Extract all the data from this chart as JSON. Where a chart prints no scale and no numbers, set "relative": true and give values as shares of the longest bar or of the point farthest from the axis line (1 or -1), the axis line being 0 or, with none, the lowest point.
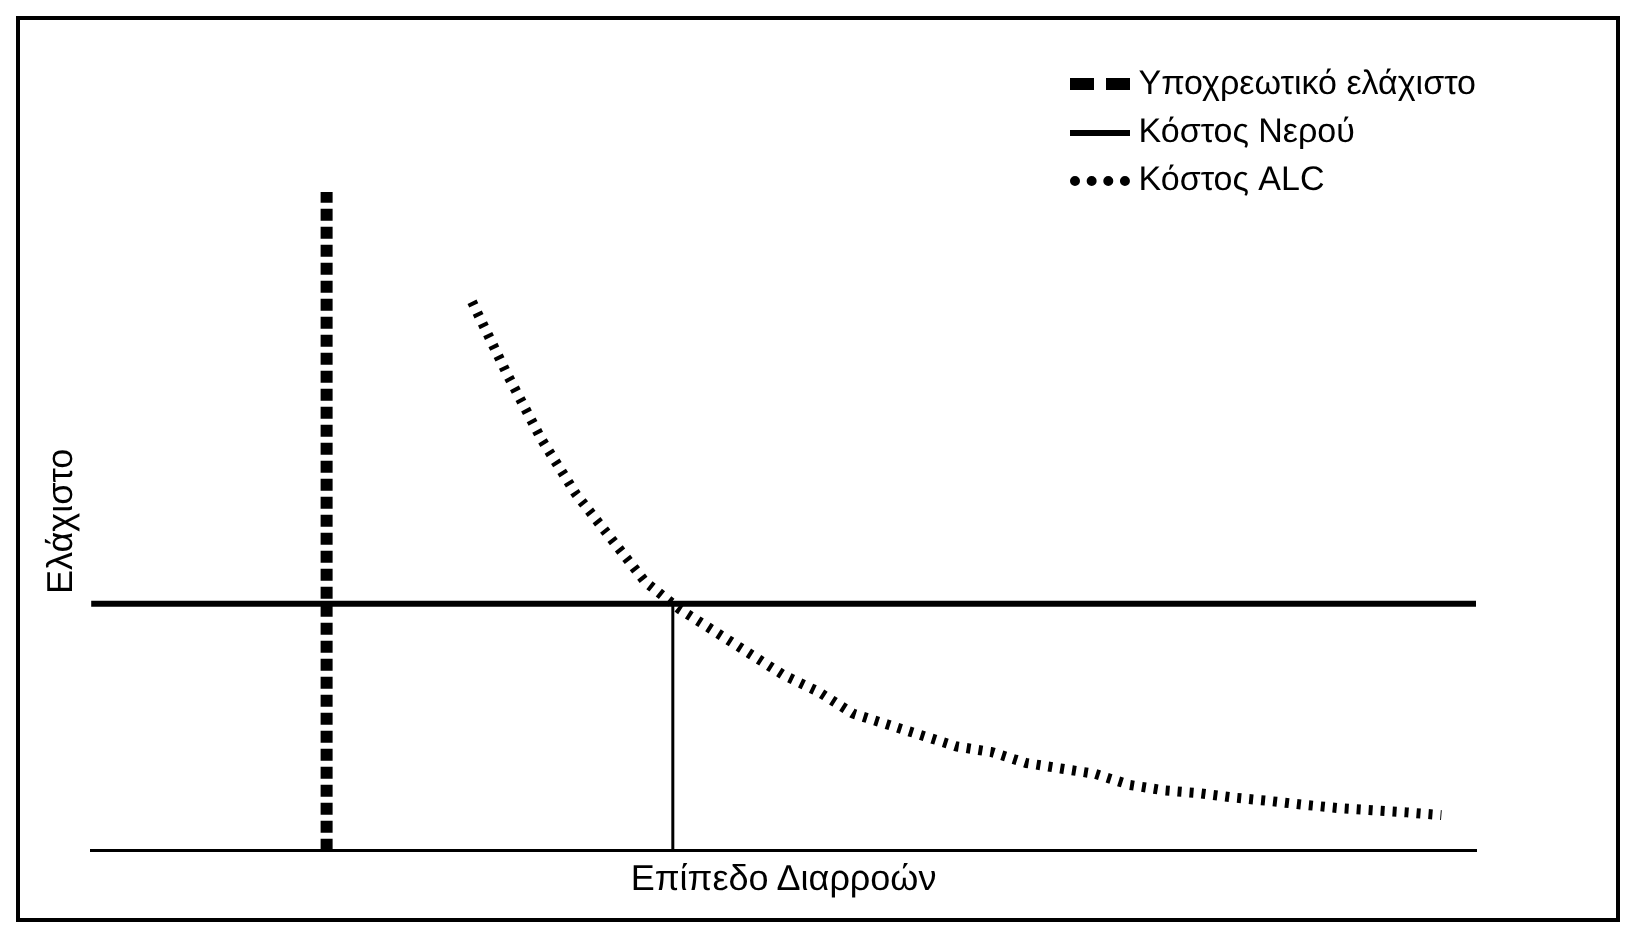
{
  "chart_data": {
    "type": "line",
    "relative": true,
    "xlabel": "Επίπεδο Διαρροών",
    "ylabel": "Ελάχιστο",
    "legend": "top right",
    "marker": "none",
    "categories": [
      null,
      null,
      null,
      null,
      null,
      null,
      null,
      null,
      null,
      null,
      null,
      null,
      null,
      null,
      null,
      null,
      null,
      null,
      null,
      null,
      null,
      null,
      null,
      null,
      null,
      null,
      null,
      null,
      null,
      null,
      null,
      null,
      null,
      null,
      null,
      null,
      null,
      null,
      null,
      null,
      null
    ],
    "series": [
      {
        "name": "Υποχρεωτικό ελάχιστο",
        "color": "#000000",
        "line_style": "dashed",
        "values": [
          null,
          null,
          null,
          null,
          null,
          null,
          null,
          null,
          null,
          null,
          null,
          null,
          null,
          null,
          null,
          null,
          null,
          null,
          null,
          null,
          null,
          null,
          null,
          null,
          null,
          null,
          null,
          null,
          null,
          null,
          null,
          null,
          null,
          null,
          null,
          null,
          null,
          null,
          null,
          null,
          null
        ]
      },
      {
        "name": "Κόστος Νερού",
        "color": "#000000",
        "line_style": "solid",
        "values": [
          0.45,
          0.45,
          0.45,
          0.45,
          0.45,
          0.45,
          0.45,
          0.45,
          0.45,
          0.45,
          0.45,
          0.45,
          0.45,
          0.45,
          0.45,
          0.45,
          0.45,
          0.45,
          0.45,
          0.45,
          0.45,
          0.45,
          0.45,
          0.45,
          0.45,
          0.45,
          0.45,
          0.45,
          0.45,
          0.45,
          0.45,
          0.45,
          0.45,
          0.45,
          0.45,
          0.45,
          0.45,
          0.45,
          0.45,
          0.45,
          0.45
        ]
      },
      {
        "name": "Κόστος ALC",
        "color": "#000000",
        "line_style": "dotted",
        "values": [
          null,
          null,
          null,
          null,
          null,
          null,
          null,
          null,
          null,
          null,
          null,
          1,
          0.87,
          0.75,
          0.65,
          0.57,
          0.49,
          0.44,
          0.4,
          0.36,
          0.32,
          0.29,
          0.25,
          0.23,
          0.21,
          0.19,
          0.18,
          0.16,
          0.15,
          0.14,
          0.12,
          0.11,
          0.105,
          0.097,
          0.091,
          0.084,
          0.078,
          0.074,
          0.07,
          0.065,
          null
        ]
      }
    ]
  }
}
